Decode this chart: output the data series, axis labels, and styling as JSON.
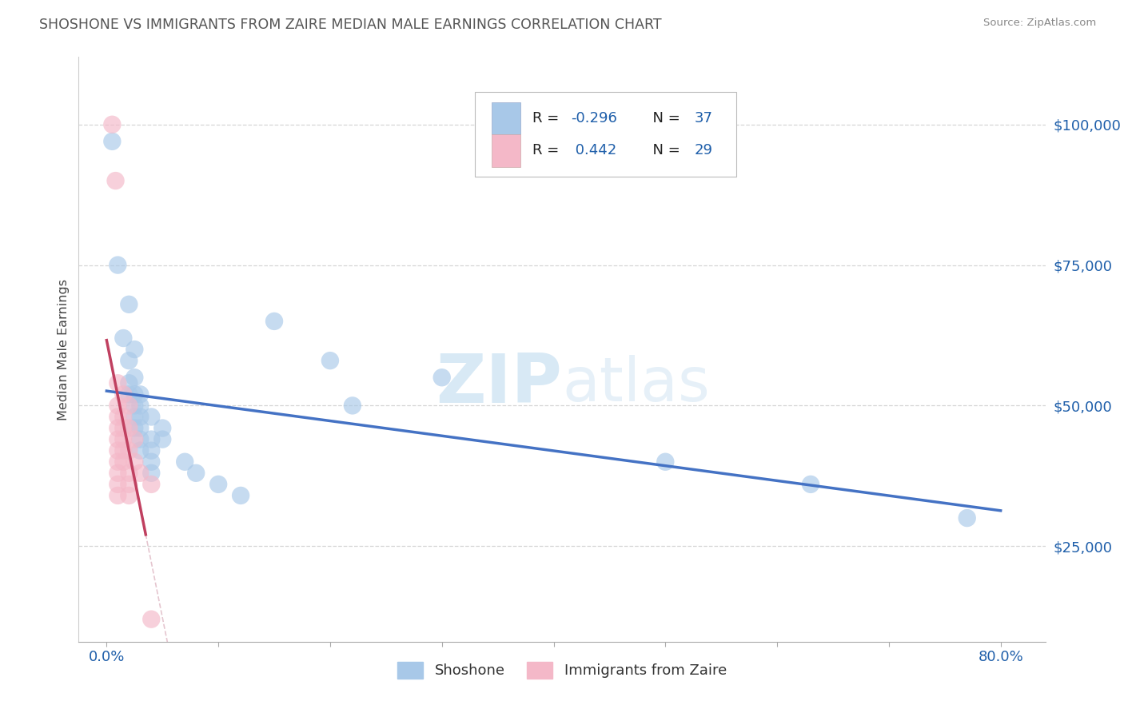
{
  "title": "SHOSHONE VS IMMIGRANTS FROM ZAIRE MEDIAN MALE EARNINGS CORRELATION CHART",
  "source": "Source: ZipAtlas.com",
  "ylabel": "Median Male Earnings",
  "legend_label1": "Shoshone",
  "legend_label2": "Immigrants from Zaire",
  "R1": -0.296,
  "N1": 37,
  "R2": 0.442,
  "N2": 29,
  "color_blue": "#a8c8e8",
  "color_pink": "#f4b8c8",
  "color_blue_line": "#4472c4",
  "color_pink_line": "#c04060",
  "color_blue_text": "#1f5faa",
  "background": "#ffffff",
  "watermark_text": "ZIPatlas",
  "shoshone_points": [
    [
      0.005,
      97000
    ],
    [
      0.01,
      75000
    ],
    [
      0.015,
      62000
    ],
    [
      0.02,
      68000
    ],
    [
      0.02,
      58000
    ],
    [
      0.02,
      54000
    ],
    [
      0.02,
      52000
    ],
    [
      0.025,
      60000
    ],
    [
      0.025,
      55000
    ],
    [
      0.025,
      52000
    ],
    [
      0.025,
      50000
    ],
    [
      0.025,
      48000
    ],
    [
      0.025,
      46000
    ],
    [
      0.03,
      52000
    ],
    [
      0.03,
      50000
    ],
    [
      0.03,
      48000
    ],
    [
      0.03,
      46000
    ],
    [
      0.03,
      44000
    ],
    [
      0.03,
      42000
    ],
    [
      0.04,
      48000
    ],
    [
      0.04,
      44000
    ],
    [
      0.04,
      42000
    ],
    [
      0.04,
      40000
    ],
    [
      0.04,
      38000
    ],
    [
      0.05,
      46000
    ],
    [
      0.05,
      44000
    ],
    [
      0.07,
      40000
    ],
    [
      0.08,
      38000
    ],
    [
      0.1,
      36000
    ],
    [
      0.12,
      34000
    ],
    [
      0.15,
      65000
    ],
    [
      0.2,
      58000
    ],
    [
      0.22,
      50000
    ],
    [
      0.3,
      55000
    ],
    [
      0.5,
      40000
    ],
    [
      0.63,
      36000
    ],
    [
      0.77,
      30000
    ]
  ],
  "zaire_points": [
    [
      0.005,
      100000
    ],
    [
      0.008,
      90000
    ],
    [
      0.01,
      54000
    ],
    [
      0.01,
      50000
    ],
    [
      0.01,
      48000
    ],
    [
      0.01,
      46000
    ],
    [
      0.01,
      44000
    ],
    [
      0.01,
      42000
    ],
    [
      0.01,
      40000
    ],
    [
      0.01,
      38000
    ],
    [
      0.01,
      36000
    ],
    [
      0.01,
      34000
    ],
    [
      0.015,
      52000
    ],
    [
      0.015,
      48000
    ],
    [
      0.015,
      46000
    ],
    [
      0.015,
      44000
    ],
    [
      0.015,
      42000
    ],
    [
      0.015,
      40000
    ],
    [
      0.02,
      50000
    ],
    [
      0.02,
      46000
    ],
    [
      0.02,
      42000
    ],
    [
      0.02,
      38000
    ],
    [
      0.02,
      36000
    ],
    [
      0.02,
      34000
    ],
    [
      0.025,
      44000
    ],
    [
      0.025,
      40000
    ],
    [
      0.03,
      38000
    ],
    [
      0.04,
      36000
    ],
    [
      0.04,
      12000
    ]
  ],
  "xlim": [
    -0.025,
    0.84
  ],
  "ylim": [
    8000,
    112000
  ],
  "y_ticks": [
    25000,
    50000,
    75000,
    100000
  ],
  "y_tick_labels": [
    "$25,000",
    "$50,000",
    "$75,000",
    "$100,000"
  ],
  "x_tick_positions": [
    0.0,
    0.1,
    0.2,
    0.3,
    0.4,
    0.5,
    0.6,
    0.7,
    0.8
  ],
  "grid_color": "#cccccc",
  "grid_alpha": 0.8
}
